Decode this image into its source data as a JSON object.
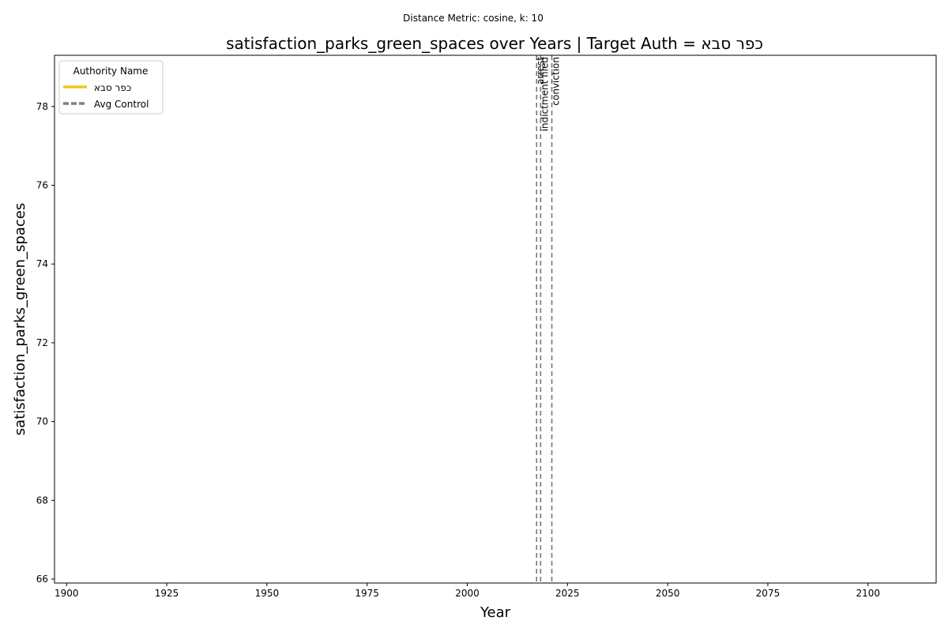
{
  "chart_data": {
    "type": "line",
    "suptitle": "Distance Metric: cosine, k: 10",
    "title": "satisfaction_parks_green_spaces over Years | Target Auth = כפר סבא",
    "xlabel": "Year",
    "ylabel": "satisfaction_parks_green_spaces",
    "xlim": [
      1897,
      2117
    ],
    "ylim": [
      65.9,
      79.3
    ],
    "x_ticks": [
      1900,
      1925,
      1950,
      1975,
      2000,
      2025,
      2050,
      2075,
      2100
    ],
    "y_ticks": [
      66,
      68,
      70,
      72,
      74,
      76,
      78
    ],
    "grid": false,
    "legend": {
      "title": "Authority Name",
      "placement": "top-left",
      "entries": [
        {
          "label": "כפר סבא",
          "color": "#f5c518",
          "style": "solid"
        },
        {
          "label": "Avg Control",
          "color": "#808080",
          "style": "dashed"
        }
      ]
    },
    "series": [
      {
        "name": "כפר סבא",
        "color": "#f5c518",
        "x": [],
        "y": []
      },
      {
        "name": "Avg Control",
        "color": "#808080",
        "x": [],
        "y": []
      }
    ],
    "events": [
      {
        "label": "arrest",
        "x": 2017.3
      },
      {
        "label": "indictment filed",
        "x": 2018.3
      },
      {
        "label": "conviction",
        "x": 2021.1
      }
    ]
  }
}
